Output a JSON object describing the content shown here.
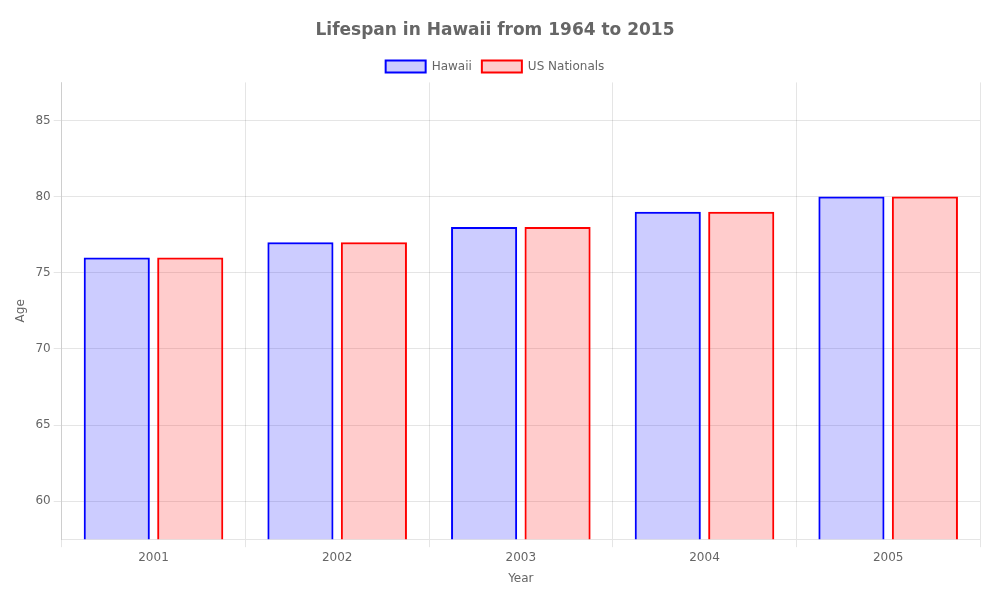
{
  "chart_data": {
    "type": "bar",
    "title": "Lifespan in Hawaii from 1964 to 2015",
    "x_label": "Year",
    "y_label": "Age",
    "categories": [
      "2001",
      "2002",
      "2003",
      "2004",
      "2005"
    ],
    "series": [
      {
        "name": "Hawaii",
        "color": "#0000ff",
        "values": [
          76,
          77,
          78,
          79,
          80
        ]
      },
      {
        "name": "US Nationals",
        "color": "#ff0000",
        "values": [
          76,
          77,
          78,
          79,
          80
        ]
      }
    ],
    "ylim": [
      57.5,
      87.5
    ],
    "yticks": [
      60,
      65,
      70,
      75,
      80,
      85
    ],
    "grid": true,
    "legend": "top"
  }
}
